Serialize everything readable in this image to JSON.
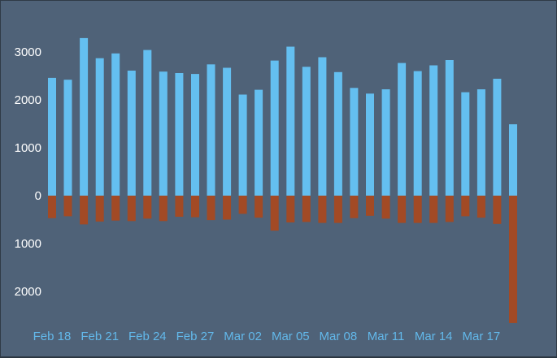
{
  "chart_data": {
    "type": "bar",
    "categories": [
      "Feb 18",
      "Feb 19",
      "Feb 20",
      "Feb 21",
      "Feb 22",
      "Feb 23",
      "Feb 24",
      "Feb 25",
      "Feb 26",
      "Feb 27",
      "Feb 28",
      "Mar 01",
      "Mar 02",
      "Mar 03",
      "Mar 04",
      "Mar 05",
      "Mar 06",
      "Mar 07",
      "Mar 08",
      "Mar 09",
      "Mar 10",
      "Mar 11",
      "Mar 12",
      "Mar 13",
      "Mar 14",
      "Mar 15",
      "Mar 16",
      "Mar 17",
      "Mar 18",
      "Mar 19"
    ],
    "x_tick_labels": [
      "Feb 18",
      "Feb 21",
      "Feb 24",
      "Feb 27",
      "Mar 02",
      "Mar 05",
      "Mar 08",
      "Mar 11",
      "Mar 14",
      "Mar 17"
    ],
    "series": [
      {
        "color": "#64bff0",
        "values": [
          2460,
          2420,
          3290,
          2870,
          2970,
          2610,
          3040,
          2590,
          2560,
          2540,
          2740,
          2670,
          2110,
          2210,
          2820,
          3110,
          2690,
          2890,
          2580,
          2250,
          2130,
          2220,
          2770,
          2600,
          2720,
          2830,
          2160,
          2220,
          2440,
          1490
        ]
      },
      {
        "color": "#a24a25",
        "values": [
          -470,
          -430,
          -600,
          -540,
          -520,
          -530,
          -480,
          -530,
          -440,
          -450,
          -510,
          -500,
          -380,
          -460,
          -730,
          -560,
          -550,
          -570,
          -570,
          -470,
          -420,
          -480,
          -570,
          -570,
          -570,
          -550,
          -430,
          -460,
          -590,
          -2660
        ]
      }
    ],
    "y_tick_labels": [
      "3000",
      "2000",
      "1000",
      "0",
      "1000",
      "2000"
    ],
    "y_tick_values": [
      3000,
      2000,
      1000,
      0,
      -1000,
      -2000
    ],
    "ylim": [
      -2850,
      3600
    ],
    "grid": false,
    "title": "",
    "xlabel": "",
    "ylabel": ""
  }
}
